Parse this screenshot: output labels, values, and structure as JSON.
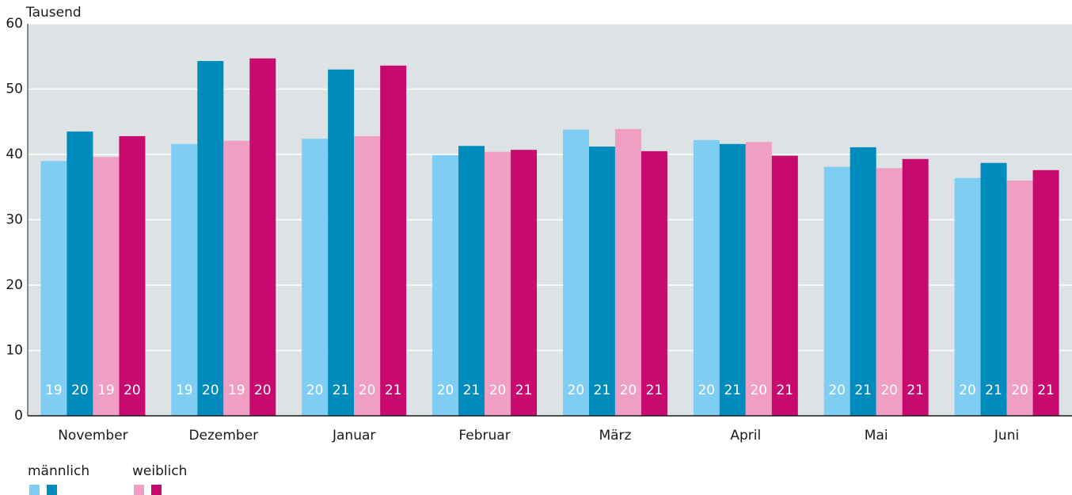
{
  "chart_data": {
    "type": "bar",
    "y_label": "Tausend",
    "categories": [
      "November",
      "Dezember",
      "Januar",
      "Februar",
      "März",
      "April",
      "Mai",
      "Juni"
    ],
    "series": [
      {
        "color": "#7fcdf3",
        "values": [
          39.0,
          41.6,
          42.4,
          39.9,
          43.8,
          42.2,
          38.1,
          36.4
        ],
        "year_labels": [
          "19",
          "19",
          "20",
          "20",
          "20",
          "20",
          "20",
          "20"
        ]
      },
      {
        "color": "#008bbd",
        "values": [
          43.5,
          54.3,
          53.0,
          41.3,
          41.2,
          41.6,
          41.1,
          38.7
        ],
        "year_labels": [
          "20",
          "20",
          "21",
          "21",
          "21",
          "21",
          "21",
          "21"
        ]
      },
      {
        "color": "#f19ec4",
        "values": [
          39.6,
          42.1,
          42.8,
          40.4,
          43.9,
          41.9,
          37.9,
          36.0
        ],
        "year_labels": [
          "19",
          "19",
          "20",
          "20",
          "20",
          "20",
          "20",
          "20"
        ]
      },
      {
        "color": "#c8096e",
        "values": [
          42.8,
          54.7,
          53.6,
          40.7,
          40.5,
          39.8,
          39.3,
          37.6
        ],
        "year_labels": [
          "20",
          "20",
          "21",
          "21",
          "21",
          "21",
          "21",
          "21"
        ]
      }
    ],
    "legend": [
      {
        "label": "männlich",
        "series": [
          0,
          1
        ]
      },
      {
        "label": "weiblich",
        "series": [
          2,
          3
        ]
      }
    ],
    "ylim": [
      0,
      60
    ],
    "yticks": [
      0,
      10,
      20,
      30,
      40,
      50,
      60
    ],
    "grid": true
  }
}
